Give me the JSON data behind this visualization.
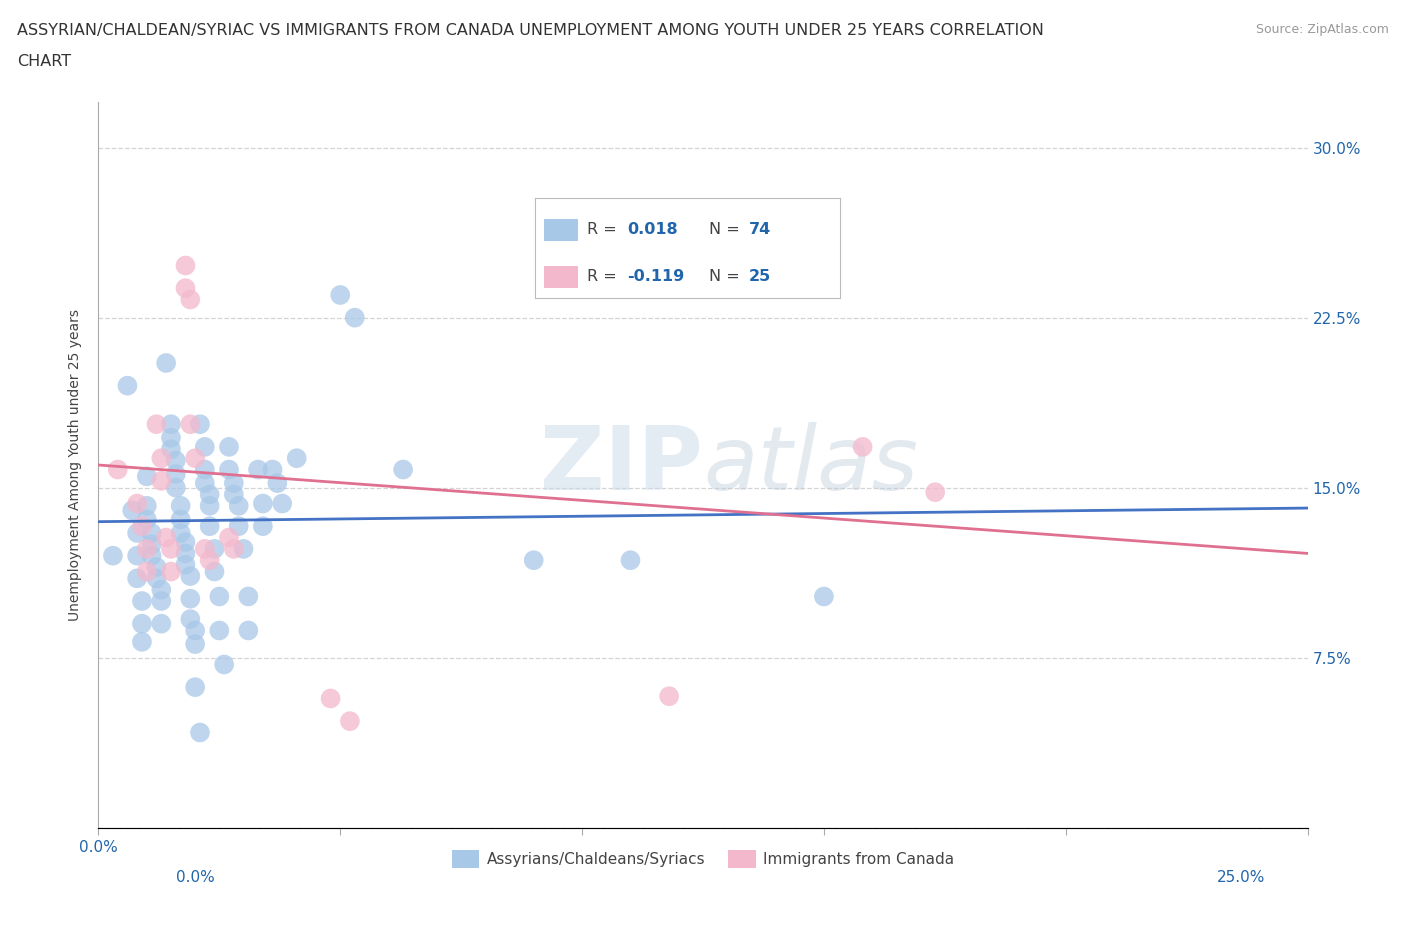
{
  "title_line1": "ASSYRIAN/CHALDEAN/SYRIAC VS IMMIGRANTS FROM CANADA UNEMPLOYMENT AMONG YOUTH UNDER 25 YEARS CORRELATION",
  "title_line2": "CHART",
  "source": "Source: ZipAtlas.com",
  "ylabel": "Unemployment Among Youth under 25 years",
  "legend_label1": "Assyrians/Chaldeans/Syriacs",
  "legend_label2": "Immigrants from Canada",
  "color_blue": "#a8c8e8",
  "color_pink": "#f4b8cc",
  "color_blue_line": "#4472c4",
  "color_pink_line": "#e07090",
  "color_blue_text": "#2166ac",
  "watermark_text": "ZIPatlas",
  "blue_scatter": [
    [
      0.003,
      0.12
    ],
    [
      0.006,
      0.195
    ],
    [
      0.007,
      0.14
    ],
    [
      0.008,
      0.13
    ],
    [
      0.008,
      0.12
    ],
    [
      0.008,
      0.11
    ],
    [
      0.009,
      0.1
    ],
    [
      0.009,
      0.09
    ],
    [
      0.009,
      0.082
    ],
    [
      0.01,
      0.155
    ],
    [
      0.01,
      0.142
    ],
    [
      0.01,
      0.136
    ],
    [
      0.011,
      0.13
    ],
    [
      0.011,
      0.125
    ],
    [
      0.011,
      0.12
    ],
    [
      0.012,
      0.115
    ],
    [
      0.012,
      0.11
    ],
    [
      0.013,
      0.105
    ],
    [
      0.013,
      0.1
    ],
    [
      0.013,
      0.09
    ],
    [
      0.014,
      0.205
    ],
    [
      0.015,
      0.178
    ],
    [
      0.015,
      0.172
    ],
    [
      0.015,
      0.167
    ],
    [
      0.016,
      0.162
    ],
    [
      0.016,
      0.156
    ],
    [
      0.016,
      0.15
    ],
    [
      0.017,
      0.142
    ],
    [
      0.017,
      0.136
    ],
    [
      0.017,
      0.13
    ],
    [
      0.018,
      0.126
    ],
    [
      0.018,
      0.121
    ],
    [
      0.018,
      0.116
    ],
    [
      0.019,
      0.111
    ],
    [
      0.019,
      0.101
    ],
    [
      0.019,
      0.092
    ],
    [
      0.02,
      0.087
    ],
    [
      0.02,
      0.081
    ],
    [
      0.02,
      0.062
    ],
    [
      0.021,
      0.042
    ],
    [
      0.021,
      0.178
    ],
    [
      0.022,
      0.168
    ],
    [
      0.022,
      0.158
    ],
    [
      0.022,
      0.152
    ],
    [
      0.023,
      0.147
    ],
    [
      0.023,
      0.142
    ],
    [
      0.023,
      0.133
    ],
    [
      0.024,
      0.123
    ],
    [
      0.024,
      0.113
    ],
    [
      0.025,
      0.102
    ],
    [
      0.025,
      0.087
    ],
    [
      0.026,
      0.072
    ],
    [
      0.027,
      0.168
    ],
    [
      0.027,
      0.158
    ],
    [
      0.028,
      0.152
    ],
    [
      0.028,
      0.147
    ],
    [
      0.029,
      0.142
    ],
    [
      0.029,
      0.133
    ],
    [
      0.03,
      0.123
    ],
    [
      0.031,
      0.102
    ],
    [
      0.031,
      0.087
    ],
    [
      0.033,
      0.158
    ],
    [
      0.034,
      0.143
    ],
    [
      0.034,
      0.133
    ],
    [
      0.036,
      0.158
    ],
    [
      0.037,
      0.152
    ],
    [
      0.038,
      0.143
    ],
    [
      0.041,
      0.163
    ],
    [
      0.05,
      0.235
    ],
    [
      0.053,
      0.225
    ],
    [
      0.063,
      0.158
    ],
    [
      0.09,
      0.118
    ],
    [
      0.11,
      0.118
    ],
    [
      0.15,
      0.102
    ]
  ],
  "pink_scatter": [
    [
      0.004,
      0.158
    ],
    [
      0.008,
      0.143
    ],
    [
      0.009,
      0.133
    ],
    [
      0.01,
      0.123
    ],
    [
      0.01,
      0.113
    ],
    [
      0.012,
      0.178
    ],
    [
      0.013,
      0.163
    ],
    [
      0.013,
      0.153
    ],
    [
      0.014,
      0.128
    ],
    [
      0.015,
      0.123
    ],
    [
      0.015,
      0.113
    ],
    [
      0.018,
      0.248
    ],
    [
      0.018,
      0.238
    ],
    [
      0.019,
      0.233
    ],
    [
      0.019,
      0.178
    ],
    [
      0.02,
      0.163
    ],
    [
      0.022,
      0.123
    ],
    [
      0.023,
      0.118
    ],
    [
      0.027,
      0.128
    ],
    [
      0.028,
      0.123
    ],
    [
      0.048,
      0.057
    ],
    [
      0.052,
      0.047
    ],
    [
      0.118,
      0.058
    ],
    [
      0.158,
      0.168
    ],
    [
      0.173,
      0.148
    ]
  ],
  "xlim": [
    0.0,
    0.25
  ],
  "ylim": [
    0.0,
    0.32
  ],
  "blue_line_x": [
    0.0,
    0.25
  ],
  "blue_line_y": [
    0.135,
    0.141
  ],
  "pink_line_x": [
    0.0,
    0.25
  ],
  "pink_line_y": [
    0.16,
    0.121
  ],
  "yticks": [
    0.0,
    0.075,
    0.15,
    0.225,
    0.3
  ],
  "xticks": [
    0.0,
    0.05,
    0.1,
    0.15,
    0.2,
    0.25
  ],
  "grid_color": "#d0d0d0",
  "bg_color": "#ffffff",
  "title_fontsize": 11.5,
  "axis_label_fontsize": 10,
  "tick_fontsize": 11
}
